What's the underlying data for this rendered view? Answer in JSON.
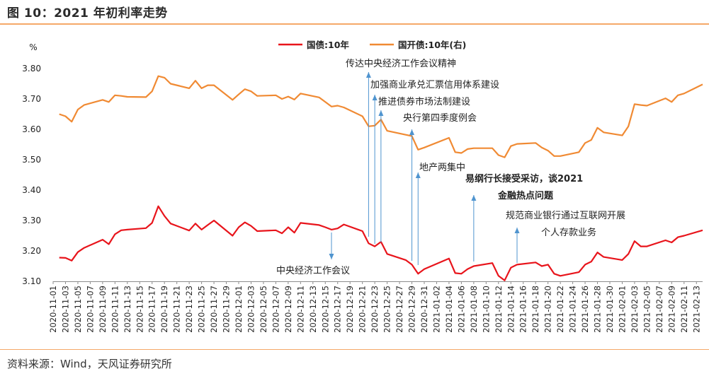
{
  "header": {
    "title": "图 10：2021 年初利率走势"
  },
  "footer": {
    "source": "资料来源：Wind，天风证券研究所"
  },
  "colors": {
    "accent_rule": "#f5a868",
    "series_1": "#e8141b",
    "series_2": "#f08a33",
    "arrow": "#4f94cf"
  },
  "chart_data": {
    "type": "line",
    "ylabel": "%",
    "ylim": [
      3.1,
      3.8
    ],
    "yticks": [
      "3.80",
      "3.70",
      "3.60",
      "3.50",
      "3.40",
      "3.30",
      "3.20",
      "3.10"
    ],
    "xtick_labels": [
      "2020-11-01",
      "2020-11-03",
      "2020-11-05",
      "2020-11-07",
      "2020-11-09",
      "2020-11-11",
      "2020-11-13",
      "2020-11-15",
      "2020-11-17",
      "2020-11-19",
      "2020-11-21",
      "2020-11-23",
      "2020-11-25",
      "2020-11-27",
      "2020-11-29",
      "2020-12-01",
      "2020-12-03",
      "2020-12-05",
      "2020-12-07",
      "2020-12-09",
      "2020-12-11",
      "2020-12-13",
      "2020-12-15",
      "2020-12-17",
      "2020-12-19",
      "2020-12-21",
      "2020-12-23",
      "2020-12-25",
      "2020-12-27",
      "2020-12-29",
      "2020-12-31",
      "2021-01-02",
      "2021-01-04",
      "2021-01-06",
      "2021-01-08",
      "2021-01-10",
      "2021-01-12",
      "2021-01-14",
      "2021-01-16",
      "2021-01-18",
      "2021-01-20",
      "2021-01-22",
      "2021-01-24",
      "2021-01-26",
      "2021-01-28",
      "2021-01-30",
      "2021-02-01",
      "2021-02-03",
      "2021-02-05",
      "2021-02-07",
      "2021-02-09",
      "2021-02-11",
      "2021-02-13"
    ],
    "grid": false,
    "legend_position": "top-center",
    "series": [
      {
        "name": "国债:10年",
        "color": "#e8141b",
        "axis": "left",
        "points": [
          [
            "2020-11-02",
            3.178
          ],
          [
            "2020-11-03",
            3.177
          ],
          [
            "2020-11-04",
            3.168
          ],
          [
            "2020-11-05",
            3.196
          ],
          [
            "2020-11-06",
            3.21
          ],
          [
            "2020-11-09",
            3.237
          ],
          [
            "2020-11-10",
            3.222
          ],
          [
            "2020-11-11",
            3.255
          ],
          [
            "2020-11-12",
            3.268
          ],
          [
            "2020-11-13",
            3.27
          ],
          [
            "2020-11-16",
            3.275
          ],
          [
            "2020-11-17",
            3.292
          ],
          [
            "2020-11-18",
            3.347
          ],
          [
            "2020-11-19",
            3.315
          ],
          [
            "2020-11-20",
            3.29
          ],
          [
            "2020-11-23",
            3.267
          ],
          [
            "2020-11-24",
            3.29
          ],
          [
            "2020-11-25",
            3.27
          ],
          [
            "2020-11-26",
            3.285
          ],
          [
            "2020-11-27",
            3.3
          ],
          [
            "2020-11-30",
            3.25
          ],
          [
            "2020-12-01",
            3.278
          ],
          [
            "2020-12-02",
            3.294
          ],
          [
            "2020-12-03",
            3.282
          ],
          [
            "2020-12-04",
            3.265
          ],
          [
            "2020-12-07",
            3.268
          ],
          [
            "2020-12-08",
            3.258
          ],
          [
            "2020-12-09",
            3.278
          ],
          [
            "2020-12-10",
            3.26
          ],
          [
            "2020-12-11",
            3.292
          ],
          [
            "2020-12-14",
            3.285
          ],
          [
            "2020-12-15",
            3.278
          ],
          [
            "2020-12-16",
            3.27
          ],
          [
            "2020-12-17",
            3.274
          ],
          [
            "2020-12-18",
            3.287
          ],
          [
            "2020-12-21",
            3.265
          ],
          [
            "2020-12-22",
            3.225
          ],
          [
            "2020-12-23",
            3.215
          ],
          [
            "2020-12-24",
            3.23
          ],
          [
            "2020-12-25",
            3.19
          ],
          [
            "2020-12-28",
            3.17
          ],
          [
            "2020-12-29",
            3.155
          ],
          [
            "2020-12-30",
            3.125
          ],
          [
            "2020-12-31",
            3.14
          ],
          [
            "2021-01-04",
            3.175
          ],
          [
            "2021-01-05",
            3.127
          ],
          [
            "2021-01-06",
            3.125
          ],
          [
            "2021-01-07",
            3.14
          ],
          [
            "2021-01-08",
            3.15
          ],
          [
            "2021-01-11",
            3.16
          ],
          [
            "2021-01-12",
            3.118
          ],
          [
            "2021-01-13",
            3.103
          ],
          [
            "2021-01-14",
            3.145
          ],
          [
            "2021-01-15",
            3.155
          ],
          [
            "2021-01-18",
            3.162
          ],
          [
            "2021-01-19",
            3.15
          ],
          [
            "2021-01-20",
            3.155
          ],
          [
            "2021-01-21",
            3.125
          ],
          [
            "2021-01-22",
            3.118
          ],
          [
            "2021-01-25",
            3.13
          ],
          [
            "2021-01-26",
            3.155
          ],
          [
            "2021-01-27",
            3.165
          ],
          [
            "2021-01-28",
            3.195
          ],
          [
            "2021-01-29",
            3.18
          ],
          [
            "2021-02-01",
            3.17
          ],
          [
            "2021-02-02",
            3.19
          ],
          [
            "2021-02-03",
            3.232
          ],
          [
            "2021-02-04",
            3.215
          ],
          [
            "2021-02-05",
            3.215
          ],
          [
            "2021-02-08",
            3.235
          ],
          [
            "2021-02-09",
            3.228
          ],
          [
            "2021-02-10",
            3.245
          ],
          [
            "2021-02-11",
            3.25
          ],
          [
            "2021-02-14",
            3.268
          ]
        ]
      },
      {
        "name": "国开债:10年(右)",
        "color": "#f08a33",
        "axis": "right",
        "points": [
          [
            "2020-11-02",
            3.65
          ],
          [
            "2020-11-03",
            3.643
          ],
          [
            "2020-11-04",
            3.625
          ],
          [
            "2020-11-05",
            3.665
          ],
          [
            "2020-11-06",
            3.68
          ],
          [
            "2020-11-09",
            3.697
          ],
          [
            "2020-11-10",
            3.69
          ],
          [
            "2020-11-11",
            3.712
          ],
          [
            "2020-11-12",
            3.71
          ],
          [
            "2020-11-13",
            3.707
          ],
          [
            "2020-11-16",
            3.706
          ],
          [
            "2020-11-17",
            3.725
          ],
          [
            "2020-11-18",
            3.775
          ],
          [
            "2020-11-19",
            3.77
          ],
          [
            "2020-11-20",
            3.75
          ],
          [
            "2020-11-23",
            3.735
          ],
          [
            "2020-11-24",
            3.76
          ],
          [
            "2020-11-25",
            3.735
          ],
          [
            "2020-11-26",
            3.745
          ],
          [
            "2020-11-27",
            3.745
          ],
          [
            "2020-11-30",
            3.697
          ],
          [
            "2020-12-01",
            3.715
          ],
          [
            "2020-12-02",
            3.732
          ],
          [
            "2020-12-03",
            3.725
          ],
          [
            "2020-12-04",
            3.71
          ],
          [
            "2020-12-07",
            3.712
          ],
          [
            "2020-12-08",
            3.7
          ],
          [
            "2020-12-09",
            3.708
          ],
          [
            "2020-12-10",
            3.698
          ],
          [
            "2020-12-11",
            3.718
          ],
          [
            "2020-12-14",
            3.705
          ],
          [
            "2020-12-15",
            3.69
          ],
          [
            "2020-12-16",
            3.675
          ],
          [
            "2020-12-17",
            3.678
          ],
          [
            "2020-12-18",
            3.672
          ],
          [
            "2020-12-21",
            3.643
          ],
          [
            "2020-12-22",
            3.61
          ],
          [
            "2020-12-23",
            3.612
          ],
          [
            "2020-12-24",
            3.632
          ],
          [
            "2020-12-25",
            3.595
          ],
          [
            "2020-12-28",
            3.582
          ],
          [
            "2020-12-29",
            3.578
          ],
          [
            "2020-12-30",
            3.533
          ],
          [
            "2020-12-31",
            3.54
          ],
          [
            "2021-01-04",
            3.572
          ],
          [
            "2021-01-05",
            3.525
          ],
          [
            "2021-01-06",
            3.522
          ],
          [
            "2021-01-07",
            3.535
          ],
          [
            "2021-01-08",
            3.538
          ],
          [
            "2021-01-11",
            3.538
          ],
          [
            "2021-01-12",
            3.515
          ],
          [
            "2021-01-13",
            3.508
          ],
          [
            "2021-01-14",
            3.545
          ],
          [
            "2021-01-15",
            3.552
          ],
          [
            "2021-01-18",
            3.555
          ],
          [
            "2021-01-19",
            3.54
          ],
          [
            "2021-01-20",
            3.53
          ],
          [
            "2021-01-21",
            3.512
          ],
          [
            "2021-01-22",
            3.512
          ],
          [
            "2021-01-25",
            3.525
          ],
          [
            "2021-01-26",
            3.555
          ],
          [
            "2021-01-27",
            3.565
          ],
          [
            "2021-01-28",
            3.605
          ],
          [
            "2021-01-29",
            3.59
          ],
          [
            "2021-02-01",
            3.58
          ],
          [
            "2021-02-02",
            3.61
          ],
          [
            "2021-02-03",
            3.683
          ],
          [
            "2021-02-04",
            3.68
          ],
          [
            "2021-02-05",
            3.678
          ],
          [
            "2021-02-08",
            3.702
          ],
          [
            "2021-02-09",
            3.69
          ],
          [
            "2021-02-10",
            3.712
          ],
          [
            "2021-02-11",
            3.718
          ],
          [
            "2021-02-14",
            3.748
          ]
        ]
      }
    ],
    "annotations": [
      {
        "text": "传达中央经济工作会议精神",
        "date": "2020-12-22",
        "direction": "up",
        "bold": false
      },
      {
        "text": "加强商业承兑汇票信用体系建设",
        "date": "2020-12-23",
        "direction": "up",
        "bold": false
      },
      {
        "text": "推进债券市场法制建设",
        "date": "2020-12-24",
        "direction": "up",
        "bold": false
      },
      {
        "text": "央行第四季度例会",
        "date": "2020-12-29",
        "direction": "up",
        "bold": false
      },
      {
        "text": "地产两集中",
        "date": "2020-12-30",
        "direction": "up",
        "bold": false
      },
      {
        "text": "易纲行长接受采访，谈2021",
        "line2": "金融热点问题",
        "date": "2021-01-08",
        "direction": "up",
        "bold": true
      },
      {
        "text": "规范商业银行通过互联网开展",
        "line2": "个人存款业务",
        "date": "2021-01-15",
        "direction": "up",
        "bold": false
      },
      {
        "text": "中央经济工作会议",
        "date": "2020-12-16",
        "direction": "down",
        "bold": false
      }
    ]
  }
}
